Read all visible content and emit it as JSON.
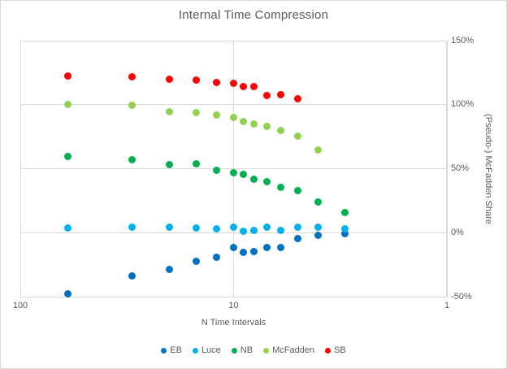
{
  "chart_title": "Internal Time Compression",
  "x_axis": {
    "title": "N Time Intervals",
    "tick_labels": [
      "100",
      "10",
      "1"
    ],
    "tick_values": [
      100,
      10,
      1
    ],
    "scale": "log",
    "reversed": true,
    "min": 1,
    "max": 100
  },
  "y_axis": {
    "title": "(Pseudo-) McFadden Share",
    "side": "right",
    "tick_labels": [
      "150%",
      "100%",
      "50%",
      "0%",
      "-50%"
    ],
    "tick_values": [
      150,
      100,
      50,
      0,
      -50
    ],
    "min": -50,
    "max": 150
  },
  "colors": {
    "text": "#595959",
    "grid": "#d9d9d9",
    "EB": "#0070C0",
    "Luce": "#00B0F0",
    "NB": "#00B050",
    "McFadden": "#92D050",
    "SB": "#FF0000"
  },
  "chart_data": {
    "type": "scatter",
    "title": "Internal Time Compression",
    "xlabel": "N Time Intervals",
    "ylabel": "(Pseudo-) McFadden Share",
    "xscale": "log",
    "x_reversed": true,
    "xlim": [
      100,
      1
    ],
    "ylim": [
      -50,
      150
    ],
    "y_units": "percent",
    "grid": true,
    "legend_position": "bottom",
    "series": [
      {
        "name": "EB",
        "color": "#0070C0",
        "x": [
          60,
          30,
          20,
          15,
          12,
          10,
          9,
          8,
          7,
          6,
          5,
          4,
          3
        ],
        "y": [
          -47.5,
          -33.5,
          -28.5,
          -22,
          -19,
          -11,
          -15,
          -14.5,
          -11.5,
          -11,
          -4,
          -2,
          -0.5
        ]
      },
      {
        "name": "Luce",
        "color": "#00B0F0",
        "x": [
          60,
          30,
          20,
          15,
          12,
          10,
          9,
          8,
          7,
          6,
          5,
          4,
          3
        ],
        "y": [
          4,
          4.5,
          4.5,
          4,
          3,
          4.5,
          1.5,
          2,
          4.5,
          2,
          4.5,
          4.5,
          3
        ]
      },
      {
        "name": "NB",
        "color": "#00B050",
        "x": [
          60,
          30,
          20,
          15,
          12,
          10,
          9,
          8,
          7,
          6,
          5,
          4,
          3
        ],
        "y": [
          59.5,
          57,
          53.5,
          54,
          49,
          47,
          45.5,
          42,
          40,
          35.5,
          33,
          24.5,
          16
        ]
      },
      {
        "name": "McFadden",
        "color": "#92D050",
        "x": [
          60,
          30,
          20,
          15,
          12,
          10,
          9,
          8,
          7,
          6,
          5,
          4
        ],
        "y": [
          100.5,
          99.5,
          94.5,
          94,
          92,
          90,
          87,
          85,
          83,
          80,
          75.5,
          64.5
        ]
      },
      {
        "name": "SB",
        "color": "#FF0000",
        "x": [
          60,
          30,
          20,
          15,
          12,
          10,
          9,
          8,
          7,
          6,
          5
        ],
        "y": [
          122.5,
          122,
          120,
          119,
          117.5,
          116.5,
          114,
          114,
          107,
          108,
          104.5
        ]
      }
    ]
  },
  "legend": {
    "items": [
      "EB",
      "Luce",
      "NB",
      "McFadden",
      "SB"
    ]
  }
}
